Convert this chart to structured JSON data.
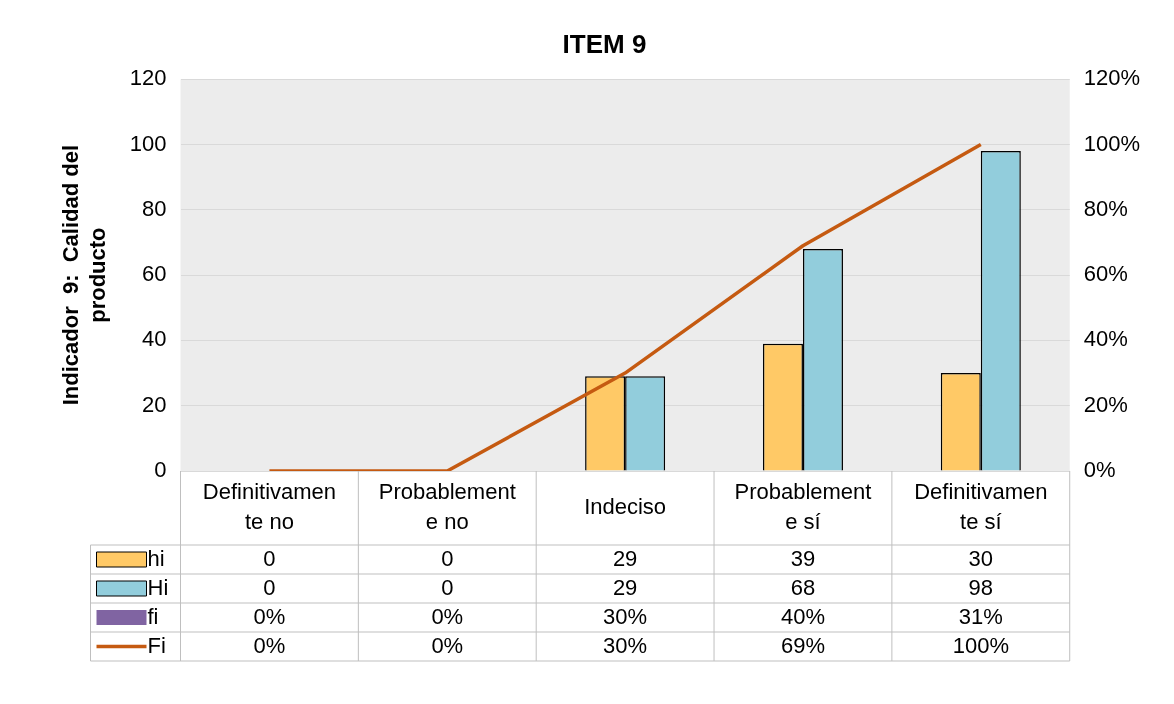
{
  "chart_data": {
    "type": "bar",
    "title": "ITEM 9",
    "ylabel": "Indicador  9:  Calidad del producto",
    "categories": [
      "Definitivamente no",
      "Probablemente no",
      "Indeciso",
      "Probablemente sí",
      "Definitivamente sí"
    ],
    "series": [
      {
        "name": "hi",
        "color": "#ffc966",
        "values": [
          0,
          0,
          29,
          39,
          30
        ],
        "value_labels": [
          "0",
          "0",
          "29",
          "39",
          "30"
        ]
      },
      {
        "name": "Hi",
        "color": "#92cddc",
        "values": [
          0,
          0,
          29,
          68,
          98
        ],
        "value_labels": [
          "0",
          "0",
          "29",
          "68",
          "98"
        ]
      },
      {
        "name": "fi",
        "type": "other",
        "color": "#8064a2",
        "values": [
          null,
          null,
          null,
          null,
          null
        ],
        "value_labels": [
          "0%",
          "0%",
          "30%",
          "40%",
          "31%"
        ]
      },
      {
        "name": "Fi",
        "type": "line",
        "color": "#c55a11",
        "values": [
          0,
          0,
          30,
          69,
          100
        ],
        "value_labels": [
          "0%",
          "0%",
          "30%",
          "69%",
          "100%"
        ]
      }
    ],
    "ylim": [
      0,
      120
    ],
    "yticks": [
      0,
      20,
      40,
      60,
      80,
      100,
      120
    ],
    "y2lim": [
      0,
      120
    ],
    "y2ticks": [
      {
        "value": 0,
        "label": "0%"
      },
      {
        "value": 20,
        "label": "20%"
      },
      {
        "value": 40,
        "label": "40%"
      },
      {
        "value": 60,
        "label": "60%"
      },
      {
        "value": 80,
        "label": "80%"
      },
      {
        "value": 100,
        "label": "100%"
      },
      {
        "value": 120,
        "label": "120%"
      }
    ],
    "grid": "y",
    "legend": "bottom",
    "marker": "none",
    "data_labels": true
  }
}
